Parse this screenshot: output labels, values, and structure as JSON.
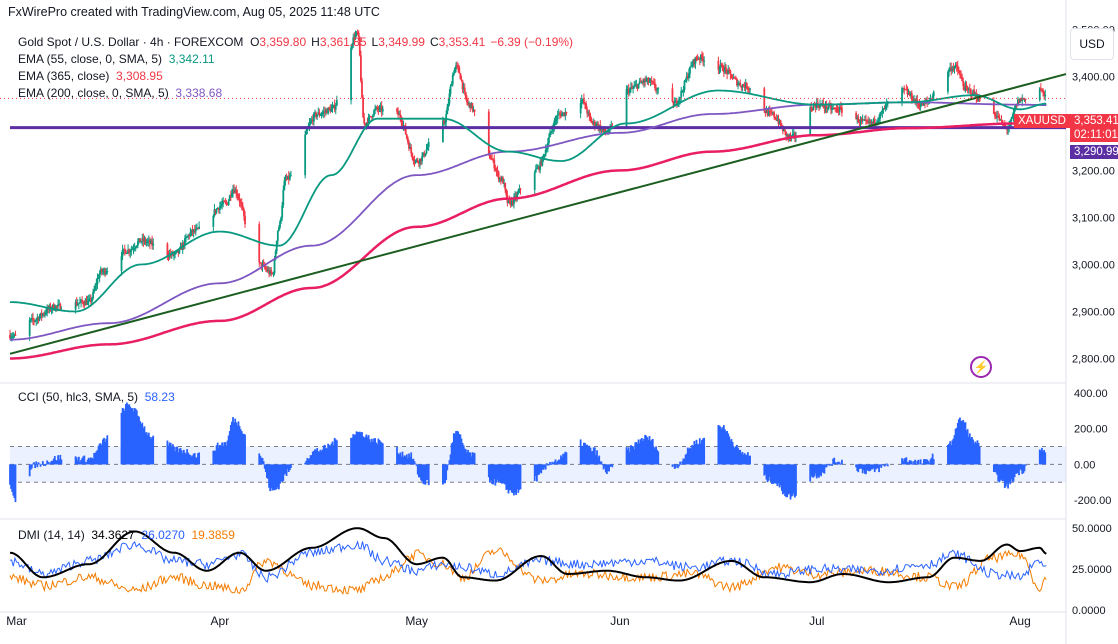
{
  "header": {
    "text": "FxWirePro created with TradingView.com, Aug 05, 2025 11:48 UTC"
  },
  "legend": {
    "symbol": "Gold Spot / U.S. Dollar · 4h · FOREXCOM",
    "o_label": "O",
    "o": "3,359.80",
    "h_label": "H",
    "h": "3,361.85",
    "l_label": "L",
    "l": "3,349.99",
    "c_label": "C",
    "c": "3,353.41",
    "change": "−6.39 (−0.19%)"
  },
  "indicators": [
    {
      "label": "EMA (55, close, 0, SMA, 5)",
      "value": "3,342.11",
      "color": "#089981"
    },
    {
      "label": "EMA (365, close)",
      "value": "3,308.95",
      "color": "#f23645"
    },
    {
      "label": "EMA (200, close, 0, SMA, 5)",
      "value": "3,338.68",
      "color": "#7e57c2"
    }
  ],
  "currency_button": "USD",
  "price_tags": {
    "symbol": "XAUUSD",
    "last": "3,353.41",
    "countdown": "02:11:01",
    "support": "3,290.99"
  },
  "cci": {
    "label": "CCI (50, hlc3, SMA, 5)",
    "value": "58.23"
  },
  "dmi": {
    "label": "DMI (14, 14)",
    "adx": "34.3627",
    "plus_di": "26.0270",
    "minus_di": "19.3859"
  },
  "colors": {
    "up": "#089981",
    "down": "#f23645",
    "ema55": "#089981",
    "ema365": "#e91e63",
    "ema200": "#7e57c2",
    "trendline": "#1b5e20",
    "support": "#5b2fa3",
    "cci": "#2962ff",
    "adx": "#000000",
    "plus_di": "#2962ff",
    "minus_di": "#f57c00"
  },
  "chart_data": [
    {
      "type": "candlestick",
      "title": "Gold Spot / U.S. Dollar · 4h · FOREXCOM",
      "x_tick_labels": [
        "Mar",
        "Apr",
        "May",
        "Jun",
        "Jul",
        "Aug"
      ],
      "y_tick_labels": [
        "3,500.00",
        "3,400.00",
        "3,300.00",
        "3,200.00",
        "3,100.00",
        "3,000.00",
        "2,900.00",
        "2,800.00"
      ],
      "ylim": [
        2750,
        3520
      ],
      "price_anchors": [
        [
          "Feb 28",
          2850
        ],
        [
          "Mar 01",
          2845
        ],
        [
          "Mar 03",
          2880
        ],
        [
          "Mar 07",
          2910
        ],
        [
          "Mar 12",
          2920
        ],
        [
          "Mar 14",
          2985
        ],
        [
          "Mar 18",
          3030
        ],
        [
          "Mar 20",
          3050
        ],
        [
          "Mar 25",
          3020
        ],
        [
          "Mar 28",
          3070
        ],
        [
          "Apr 02",
          3130
        ],
        [
          "Apr 03",
          3160
        ],
        [
          "Apr 07",
          3000
        ],
        [
          "Apr 09",
          2980
        ],
        [
          "Apr 10",
          3080
        ],
        [
          "Apr 11",
          3180
        ],
        [
          "Apr 16",
          3320
        ],
        [
          "Apr 18",
          3330
        ],
        [
          "Apr 22",
          3490
        ],
        [
          "Apr 23",
          3300
        ],
        [
          "Apr 25",
          3330
        ],
        [
          "Apr 28",
          3320
        ],
        [
          "May 01",
          3220
        ],
        [
          "May 05",
          3300
        ],
        [
          "May 07",
          3420
        ],
        [
          "May 09",
          3340
        ],
        [
          "May 12",
          3230
        ],
        [
          "May 14",
          3180
        ],
        [
          "May 15",
          3130
        ],
        [
          "May 19",
          3200
        ],
        [
          "May 23",
          3320
        ],
        [
          "May 26",
          3350
        ],
        [
          "May 28",
          3300
        ],
        [
          "May 30",
          3280
        ],
        [
          "Jun 02",
          3370
        ],
        [
          "Jun 05",
          3390
        ],
        [
          "Jun 09",
          3340
        ],
        [
          "Jun 13",
          3440
        ],
        [
          "Jun 16",
          3420
        ],
        [
          "Jun 20",
          3380
        ],
        [
          "Jun 24",
          3320
        ],
        [
          "Jun 27",
          3270
        ],
        [
          "Jul 01",
          3340
        ],
        [
          "Jul 04",
          3330
        ],
        [
          "Jul 09",
          3300
        ],
        [
          "Jul 14",
          3370
        ],
        [
          "Jul 17",
          3340
        ],
        [
          "Jul 22",
          3420
        ],
        [
          "Jul 24",
          3370
        ],
        [
          "Jul 28",
          3320
        ],
        [
          "Jul 30",
          3290
        ],
        [
          "Aug 01",
          3350
        ],
        [
          "Aug 04",
          3375
        ],
        [
          "Aug 05",
          3353.41
        ]
      ],
      "ohlc_last": {
        "open": 3359.8,
        "high": 3361.85,
        "low": 3349.99,
        "close": 3353.41
      },
      "series": [
        {
          "name": "EMA (55, close, 0, SMA, 5)",
          "last": 3342.11,
          "anchors": [
            [
              "Feb 28",
              2920
            ],
            [
              "Mar 10",
              2900
            ],
            [
              "Mar 20",
              3000
            ],
            [
              "Apr 01",
              3070
            ],
            [
              "Apr 10",
              3040
            ],
            [
              "Apr 18",
              3190
            ],
            [
              "Apr 25",
              3310
            ],
            [
              "May 05",
              3310
            ],
            [
              "May 15",
              3240
            ],
            [
              "May 23",
              3220
            ],
            [
              "Jun 02",
              3300
            ],
            [
              "Jun 16",
              3370
            ],
            [
              "Jul 01",
              3340
            ],
            [
              "Jul 15",
              3345
            ],
            [
              "Jul 25",
              3360
            ],
            [
              "Aug 01",
              3330
            ],
            [
              "Aug 05",
              3342
            ]
          ]
        },
        {
          "name": "EMA (365, close)",
          "last": 3308.95,
          "anchors": [
            [
              "Feb 28",
              2800
            ],
            [
              "Mar 15",
              2830
            ],
            [
              "Apr 01",
              2880
            ],
            [
              "Apr 15",
              2950
            ],
            [
              "May 01",
              3080
            ],
            [
              "May 15",
              3140
            ],
            [
              "Jun 01",
              3200
            ],
            [
              "Jun 15",
              3240
            ],
            [
              "Jul 01",
              3275
            ],
            [
              "Jul 15",
              3290
            ],
            [
              "Aug 01",
              3300
            ],
            [
              "Aug 05",
              3309
            ]
          ]
        },
        {
          "name": "EMA (200, close, 0, SMA, 5)",
          "last": 3338.68,
          "anchors": [
            [
              "Feb 28",
              2840
            ],
            [
              "Mar 15",
              2875
            ],
            [
              "Apr 01",
              2960
            ],
            [
              "Apr 15",
              3040
            ],
            [
              "May 01",
              3190
            ],
            [
              "May 15",
              3240
            ],
            [
              "Jun 01",
              3280
            ],
            [
              "Jun 15",
              3320
            ],
            [
              "Jul 01",
              3340
            ],
            [
              "Jul 15",
              3345
            ],
            [
              "Aug 01",
              3340
            ],
            [
              "Aug 05",
              3339
            ]
          ]
        },
        {
          "name": "trendline",
          "anchors": [
            [
              "Feb 28",
              2810
            ],
            [
              "Aug 08",
              3405
            ]
          ]
        },
        {
          "name": "support",
          "anchors": [
            [
              "Feb 28",
              3290.99
            ],
            [
              "Aug 08",
              3290.99
            ]
          ]
        }
      ]
    },
    {
      "type": "histogram",
      "title": "CCI (50, hlc3, SMA, 5)",
      "last": 58.23,
      "ylim": [
        -300,
        450
      ],
      "y_tick_labels": [
        "400.00",
        "200.00",
        "0.00",
        "-200.00"
      ],
      "bands": [
        -100,
        100
      ],
      "anchors": [
        [
          "Feb 28",
          -120
        ],
        [
          "Mar 01",
          -200
        ],
        [
          "Mar 04",
          0
        ],
        [
          "Mar 08",
          40
        ],
        [
          "Mar 12",
          30
        ],
        [
          "Mar 15",
          150
        ],
        [
          "Mar 18",
          330
        ],
        [
          "Mar 22",
          150
        ],
        [
          "Mar 26",
          80
        ],
        [
          "Mar 29",
          50
        ],
        [
          "Apr 02",
          120
        ],
        [
          "Apr 03",
          250
        ],
        [
          "Apr 07",
          60
        ],
        [
          "Apr 09",
          -150
        ],
        [
          "Apr 12",
          -30
        ],
        [
          "Apr 16",
          80
        ],
        [
          "Apr 20",
          150
        ],
        [
          "Apr 22",
          180
        ],
        [
          "Apr 25",
          130
        ],
        [
          "Apr 30",
          50
        ],
        [
          "May 02",
          -100
        ],
        [
          "May 05",
          -120
        ],
        [
          "May 07",
          180
        ],
        [
          "May 09",
          60
        ],
        [
          "May 13",
          -100
        ],
        [
          "May 16",
          -160
        ],
        [
          "May 19",
          -80
        ],
        [
          "May 22",
          20
        ],
        [
          "May 26",
          120
        ],
        [
          "May 28",
          80
        ],
        [
          "May 30",
          -40
        ],
        [
          "Jun 02",
          80
        ],
        [
          "Jun 05",
          150
        ],
        [
          "Jun 09",
          -20
        ],
        [
          "Jun 13",
          130
        ],
        [
          "Jun 16",
          220
        ],
        [
          "Jun 20",
          60
        ],
        [
          "Jun 24",
          -90
        ],
        [
          "Jun 27",
          -180
        ],
        [
          "Jul 01",
          -60
        ],
        [
          "Jul 04",
          20
        ],
        [
          "Jul 09",
          -40
        ],
        [
          "Jul 14",
          30
        ],
        [
          "Jul 17",
          10
        ],
        [
          "Jul 21",
          100
        ],
        [
          "Jul 23",
          250
        ],
        [
          "Jul 25",
          130
        ],
        [
          "Jul 28",
          -60
        ],
        [
          "Jul 30",
          -120
        ],
        [
          "Aug 01",
          -40
        ],
        [
          "Aug 04",
          100
        ],
        [
          "Aug 05",
          58.23
        ]
      ]
    },
    {
      "type": "line",
      "title": "DMI (14, 14)",
      "ylim": [
        0,
        55
      ],
      "y_tick_labels": [
        "50.0000",
        "25.0000",
        "0.0000"
      ],
      "series": [
        {
          "name": "ADX",
          "last": 34.3627,
          "anchors": [
            [
              "Feb 28",
              35
            ],
            [
              "Mar 05",
              20
            ],
            [
              "Mar 12",
              28
            ],
            [
              "Mar 19",
              48
            ],
            [
              "Mar 25",
              35
            ],
            [
              "Mar 30",
              24
            ],
            [
              "Apr 04",
              35
            ],
            [
              "Apr 08",
              24
            ],
            [
              "Apr 15",
              38
            ],
            [
              "Apr 22",
              50
            ],
            [
              "Apr 26",
              44
            ],
            [
              "May 01",
              28
            ],
            [
              "May 05",
              32
            ],
            [
              "May 08",
              20
            ],
            [
              "May 13",
              18
            ],
            [
              "May 20",
              33
            ],
            [
              "May 24",
              22
            ],
            [
              "May 30",
              24
            ],
            [
              "Jun 05",
              20
            ],
            [
              "Jun 10",
              18
            ],
            [
              "Jun 18",
              30
            ],
            [
              "Jun 23",
              20
            ],
            [
              "Jun 30",
              17
            ],
            [
              "Jul 05",
              22
            ],
            [
              "Jul 12",
              17
            ],
            [
              "Jul 18",
              20
            ],
            [
              "Jul 22",
              32
            ],
            [
              "Jul 26",
              30
            ],
            [
              "Jul 30",
              40
            ],
            [
              "Aug 01",
              36
            ],
            [
              "Aug 04",
              38
            ],
            [
              "Aug 05",
              34.36
            ]
          ]
        },
        {
          "name": "+DI",
          "last": 26.027,
          "anchors": [
            [
              "Feb 28",
              30
            ],
            [
              "Mar 05",
              22
            ],
            [
              "Mar 12",
              30
            ],
            [
              "Mar 19",
              40
            ],
            [
              "Mar 25",
              30
            ],
            [
              "Mar 30",
              28
            ],
            [
              "Apr 04",
              34
            ],
            [
              "Apr 08",
              20
            ],
            [
              "Apr 15",
              35
            ],
            [
              "Apr 22",
              40
            ],
            [
              "Apr 26",
              30
            ],
            [
              "May 01",
              24
            ],
            [
              "May 05",
              28
            ],
            [
              "May 08",
              26
            ],
            [
              "May 13",
              22
            ],
            [
              "May 20",
              30
            ],
            [
              "May 26",
              28
            ],
            [
              "Jun 05",
              30
            ],
            [
              "Jun 12",
              26
            ],
            [
              "Jun 18",
              30
            ],
            [
              "Jun 25",
              22
            ],
            [
              "Jul 01",
              25
            ],
            [
              "Jul 10",
              24
            ],
            [
              "Jul 18",
              28
            ],
            [
              "Jul 22",
              34
            ],
            [
              "Jul 28",
              22
            ],
            [
              "Aug 01",
              20
            ],
            [
              "Aug 04",
              30
            ],
            [
              "Aug 05",
              26.03
            ]
          ]
        },
        {
          "name": "-DI",
          "last": 19.3859,
          "anchors": [
            [
              "Feb 28",
              20
            ],
            [
              "Mar 05",
              15
            ],
            [
              "Mar 12",
              20
            ],
            [
              "Mar 19",
              12
            ],
            [
              "Mar 25",
              20
            ],
            [
              "Mar 30",
              15
            ],
            [
              "Apr 04",
              12
            ],
            [
              "Apr 08",
              30
            ],
            [
              "Apr 15",
              15
            ],
            [
              "Apr 22",
              12
            ],
            [
              "Apr 26",
              20
            ],
            [
              "May 01",
              34
            ],
            [
              "May 05",
              28
            ],
            [
              "May 08",
              20
            ],
            [
              "May 13",
              36
            ],
            [
              "May 20",
              18
            ],
            [
              "May 26",
              22
            ],
            [
              "Jun 05",
              20
            ],
            [
              "Jun 12",
              22
            ],
            [
              "Jun 18",
              14
            ],
            [
              "Jun 25",
              26
            ],
            [
              "Jul 01",
              22
            ],
            [
              "Jul 10",
              24
            ],
            [
              "Jul 18",
              20
            ],
            [
              "Jul 22",
              14
            ],
            [
              "Jul 28",
              32
            ],
            [
              "Aug 01",
              34
            ],
            [
              "Aug 04",
              14
            ],
            [
              "Aug 05",
              19.39
            ]
          ]
        }
      ]
    }
  ]
}
